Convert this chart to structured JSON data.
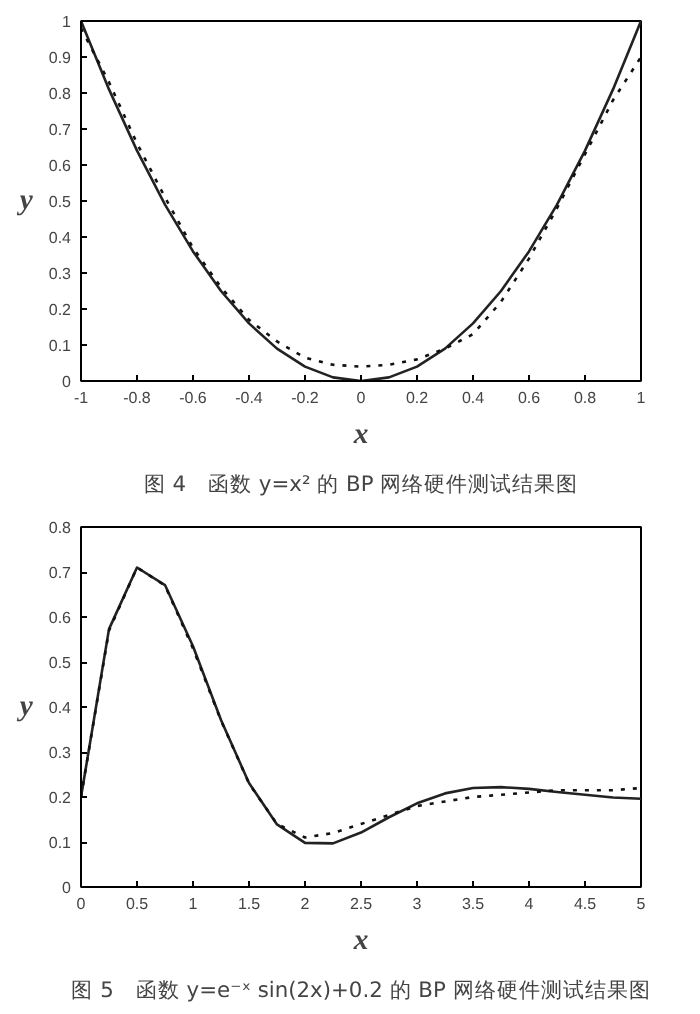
{
  "chart_data": [
    {
      "type": "line",
      "title": "图 4　函数 y=x² 的 BP 网络硬件测试结果图",
      "xlabel": "x",
      "ylabel": "y",
      "x": [
        -1,
        -0.9,
        -0.8,
        -0.7,
        -0.6,
        -0.5,
        -0.4,
        -0.3,
        -0.2,
        -0.1,
        0,
        0.1,
        0.2,
        0.3,
        0.4,
        0.5,
        0.6,
        0.7,
        0.8,
        0.9,
        1
      ],
      "series": [
        {
          "color": "#222222",
          "line_style": "solid",
          "values": [
            1,
            0.81,
            0.64,
            0.49,
            0.36,
            0.25,
            0.16,
            0.09,
            0.04,
            0.01,
            0,
            0.01,
            0.04,
            0.09,
            0.16,
            0.25,
            0.36,
            0.49,
            0.64,
            0.81,
            1
          ]
        },
        {
          "color": "#111111",
          "line_style": "dotted",
          "values": [
            0.98,
            0.83,
            0.66,
            0.51,
            0.37,
            0.26,
            0.17,
            0.11,
            0.065,
            0.045,
            0.04,
            0.045,
            0.06,
            0.09,
            0.13,
            0.22,
            0.34,
            0.48,
            0.63,
            0.78,
            0.9
          ]
        }
      ],
      "xlim": [
        -1,
        1
      ],
      "ylim": [
        0,
        1
      ],
      "xticks": [
        -1,
        -0.8,
        -0.6,
        -0.4,
        -0.2,
        0,
        0.2,
        0.4,
        0.6,
        0.8,
        1
      ],
      "yticks": [
        0,
        0.1,
        0.2,
        0.3,
        0.4,
        0.5,
        0.6,
        0.7,
        0.8,
        0.9,
        1
      ]
    },
    {
      "type": "line",
      "title": "图 5　函数 y=e⁻ˣ sin(2x)+0.2 的 BP 网络硬件测试结果图",
      "xlabel": "x",
      "ylabel": "y",
      "x": [
        0,
        0.25,
        0.5,
        0.75,
        1,
        1.25,
        1.5,
        1.75,
        2,
        2.25,
        2.5,
        2.75,
        3,
        3.25,
        3.5,
        3.75,
        4,
        4.25,
        4.5,
        4.75,
        5
      ],
      "series": [
        {
          "color": "#222222",
          "line_style": "solid",
          "values": [
            0.2,
            0.573,
            0.71,
            0.671,
            0.535,
            0.371,
            0.231,
            0.139,
            0.098,
            0.097,
            0.121,
            0.155,
            0.186,
            0.208,
            0.22,
            0.222,
            0.218,
            0.211,
            0.205,
            0.199,
            0.196
          ]
        },
        {
          "color": "#111111",
          "line_style": "dotted",
          "values": [
            0.2,
            0.57,
            0.71,
            0.67,
            0.53,
            0.37,
            0.23,
            0.14,
            0.11,
            0.12,
            0.14,
            0.16,
            0.18,
            0.19,
            0.2,
            0.205,
            0.21,
            0.215,
            0.215,
            0.215,
            0.22
          ]
        }
      ],
      "xlim": [
        0,
        5
      ],
      "ylim": [
        0,
        0.8
      ],
      "xticks": [
        0,
        0.5,
        1,
        1.5,
        2,
        2.5,
        3,
        3.5,
        4,
        4.5,
        5
      ],
      "yticks": [
        0,
        0.1,
        0.2,
        0.3,
        0.4,
        0.5,
        0.6,
        0.7,
        0.8
      ]
    }
  ]
}
